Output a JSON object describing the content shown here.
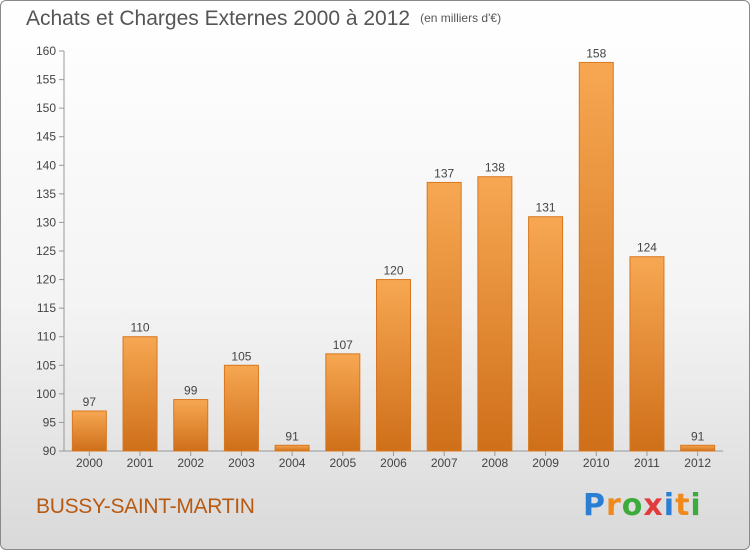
{
  "title": "Achats et Charges Externes 2000 à 2012",
  "unit": "(en milliers d'€)",
  "commune": "BUSSY-SAINT-MARTIN",
  "logo": {
    "letters": [
      "P",
      "r",
      "o",
      "x",
      "i",
      "t",
      "i"
    ],
    "colors": [
      "#2a7fd4",
      "#f08a1c",
      "#3cab3c",
      "#e23b3b",
      "#2a7fd4",
      "#f08a1c",
      "#3cab3c"
    ]
  },
  "colors": {
    "bar_light": "#f7a752",
    "bar_dark": "#cf6f1a",
    "commune_text": "#b85a12"
  },
  "chart_data": {
    "type": "bar",
    "categories": [
      "2000",
      "2001",
      "2002",
      "2003",
      "2004",
      "2005",
      "2006",
      "2007",
      "2008",
      "2009",
      "2010",
      "2011",
      "2012"
    ],
    "values": [
      97,
      110,
      99,
      105,
      91,
      107,
      120,
      137,
      138,
      131,
      158,
      124,
      91
    ],
    "ylim": [
      90,
      160
    ],
    "yticks": [
      90,
      95,
      100,
      105,
      110,
      115,
      120,
      125,
      130,
      135,
      140,
      145,
      150,
      155,
      160
    ],
    "grid": false
  }
}
